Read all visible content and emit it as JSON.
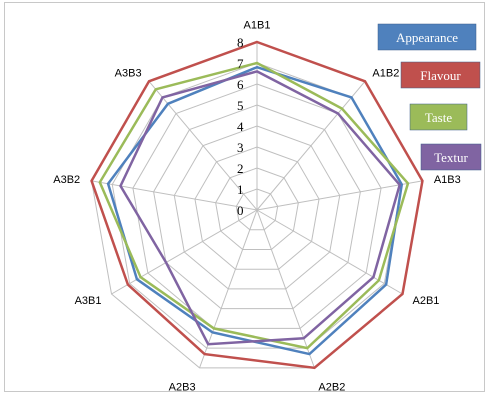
{
  "chart_data": {
    "type": "radar",
    "title": "",
    "categories": [
      "A1B1",
      "A1B2",
      "A1B3",
      "A2B1",
      "A2B2",
      "A2B3",
      "A3B1",
      "A3B2",
      "A3B3"
    ],
    "rlim": [
      0,
      8
    ],
    "ticks": [
      "0",
      "1",
      "2",
      "3",
      "4",
      "5",
      "6",
      "7",
      "8"
    ],
    "grid": true,
    "legend_position": "right",
    "series": [
      {
        "name": "Appearance",
        "color": "#4f81bd",
        "values": [
          6.8,
          7.0,
          7.0,
          7.1,
          7.3,
          6.2,
          6.6,
          7.2,
          6.6
        ]
      },
      {
        "name": "Flavour",
        "color": "#c0504d",
        "values": [
          8.0,
          8.0,
          8.0,
          8.0,
          8.0,
          7.3,
          7.1,
          8.0,
          8.0
        ]
      },
      {
        "name": "Taste",
        "color": "#9bbb59",
        "values": [
          7.0,
          6.3,
          7.3,
          6.7,
          7.0,
          6.0,
          6.4,
          7.6,
          7.5
        ]
      },
      {
        "name": "Textur",
        "color": "#8064a2",
        "values": [
          6.6,
          6.0,
          6.9,
          6.4,
          6.5,
          6.8,
          5.0,
          6.6,
          7.0
        ]
      }
    ]
  }
}
